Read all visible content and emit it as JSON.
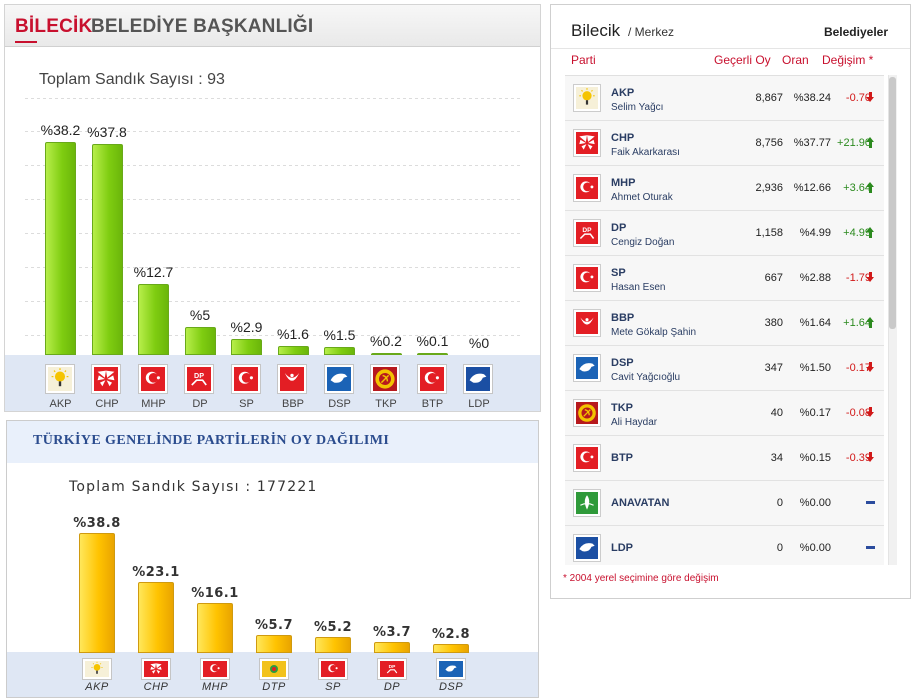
{
  "municipal_panel": {
    "title_red": "BİLECİK",
    "title_rest": "BELEDİYE BAŞKANLIĞI",
    "ballot_box_label": "Toplam Sandık Sayısı : 93"
  },
  "national_panel": {
    "title": "TÜRKİYE GENELİNDE PARTİLERİN OY DAĞILIMI",
    "ballot_box_label": "Toplam Sandık Sayısı : 177221"
  },
  "results_table": {
    "city": "Bilecik",
    "district": "/ Merkez",
    "tab": "Belediyeler",
    "headers": {
      "party": "Parti",
      "valid_votes": "Geçerli Oy",
      "rate": "Oran",
      "change": "Değişim *"
    },
    "footnote": "* 2004 yerel seçimine göre değişim",
    "rows": [
      {
        "party": "AKP",
        "candidate": "Selim Yağcı",
        "votes": "8,867",
        "rate": "%38.24",
        "change": "-0.70",
        "trend": "down",
        "logo": "akp-logo"
      },
      {
        "party": "CHP",
        "candidate": "Faik Akarkarası",
        "votes": "8,756",
        "rate": "%37.77",
        "change": "+21.90",
        "trend": "up",
        "logo": "chp-logo"
      },
      {
        "party": "MHP",
        "candidate": "Ahmet Oturak",
        "votes": "2,936",
        "rate": "%12.66",
        "change": "+3.64",
        "trend": "up",
        "logo": "mhp-logo"
      },
      {
        "party": "DP",
        "candidate": "Cengiz Doğan",
        "votes": "1,158",
        "rate": "%4.99",
        "change": "+4.99",
        "trend": "up",
        "logo": "dp-logo"
      },
      {
        "party": "SP",
        "candidate": "Hasan Esen",
        "votes": "667",
        "rate": "%2.88",
        "change": "-1.79",
        "trend": "down",
        "logo": "sp-logo"
      },
      {
        "party": "BBP",
        "candidate": "Mete Gökalp Şahin",
        "votes": "380",
        "rate": "%1.64",
        "change": "+1.64",
        "trend": "up",
        "logo": "bbp-logo"
      },
      {
        "party": "DSP",
        "candidate": "Cavit Yağcıoğlu",
        "votes": "347",
        "rate": "%1.50",
        "change": "-0.17",
        "trend": "down",
        "logo": "dsp-logo"
      },
      {
        "party": "TKP",
        "candidate": "Ali Haydar",
        "votes": "40",
        "rate": "%0.17",
        "change": "-0.08",
        "trend": "down",
        "logo": "tkp-logo"
      },
      {
        "party": "BTP",
        "candidate": "",
        "votes": "34",
        "rate": "%0.15",
        "change": "-0.39",
        "trend": "down",
        "logo": "btp-logo"
      },
      {
        "party": "ANAVATAN",
        "candidate": "",
        "votes": "0",
        "rate": "%0.00",
        "change": "",
        "trend": "flat",
        "logo": "anavatan-logo"
      },
      {
        "party": "LDP",
        "candidate": "",
        "votes": "0",
        "rate": "%0.00",
        "change": "",
        "trend": "flat",
        "logo": "ldp-logo"
      }
    ],
    "scroll_position": 0.0
  },
  "logo_colors": {
    "AKP": "#f6f0d8",
    "CHP": "#e31e24",
    "MHP": "#e31e24",
    "DP": "#e31e24",
    "SP": "#e31e24",
    "BBP": "#e31e24",
    "DSP": "#1b63b6",
    "TKP": "#b7191d",
    "BTP": "#e31e24",
    "LDP": "#1b4fa3",
    "ANAVATAN": "#2f9a3a",
    "DTP": "#f2c21b"
  },
  "chart_data": [
    {
      "type": "bar",
      "categories": [
        "AKP",
        "CHP",
        "MHP",
        "DP",
        "SP",
        "BBP",
        "DSP",
        "TKP",
        "BTP",
        "LDP"
      ],
      "values": [
        38.2,
        37.8,
        12.7,
        5,
        2.9,
        1.6,
        1.5,
        0.2,
        0.1,
        0
      ],
      "value_labels": [
        "%38.2",
        "%37.8",
        "%12.7",
        "%5",
        "%2.9",
        "%1.6",
        "%1.5",
        "%0.2",
        "%0.1",
        "%0"
      ],
      "bar_color": "#8bd41a",
      "ylim": [
        0,
        42
      ],
      "grid": true
    },
    {
      "type": "bar",
      "categories": [
        "AKP",
        "CHP",
        "MHP",
        "DTP",
        "SP",
        "DP",
        "DSP"
      ],
      "values": [
        38.8,
        23.1,
        16.1,
        5.7,
        5.2,
        3.7,
        2.8
      ],
      "value_labels": [
        "%38.8",
        "%23.1",
        "%16.1",
        "%5.7",
        "%5.2",
        "%3.7",
        "%2.8"
      ],
      "bar_color": "#ffc300",
      "ylim": [
        0,
        42
      ],
      "grid": false
    }
  ]
}
